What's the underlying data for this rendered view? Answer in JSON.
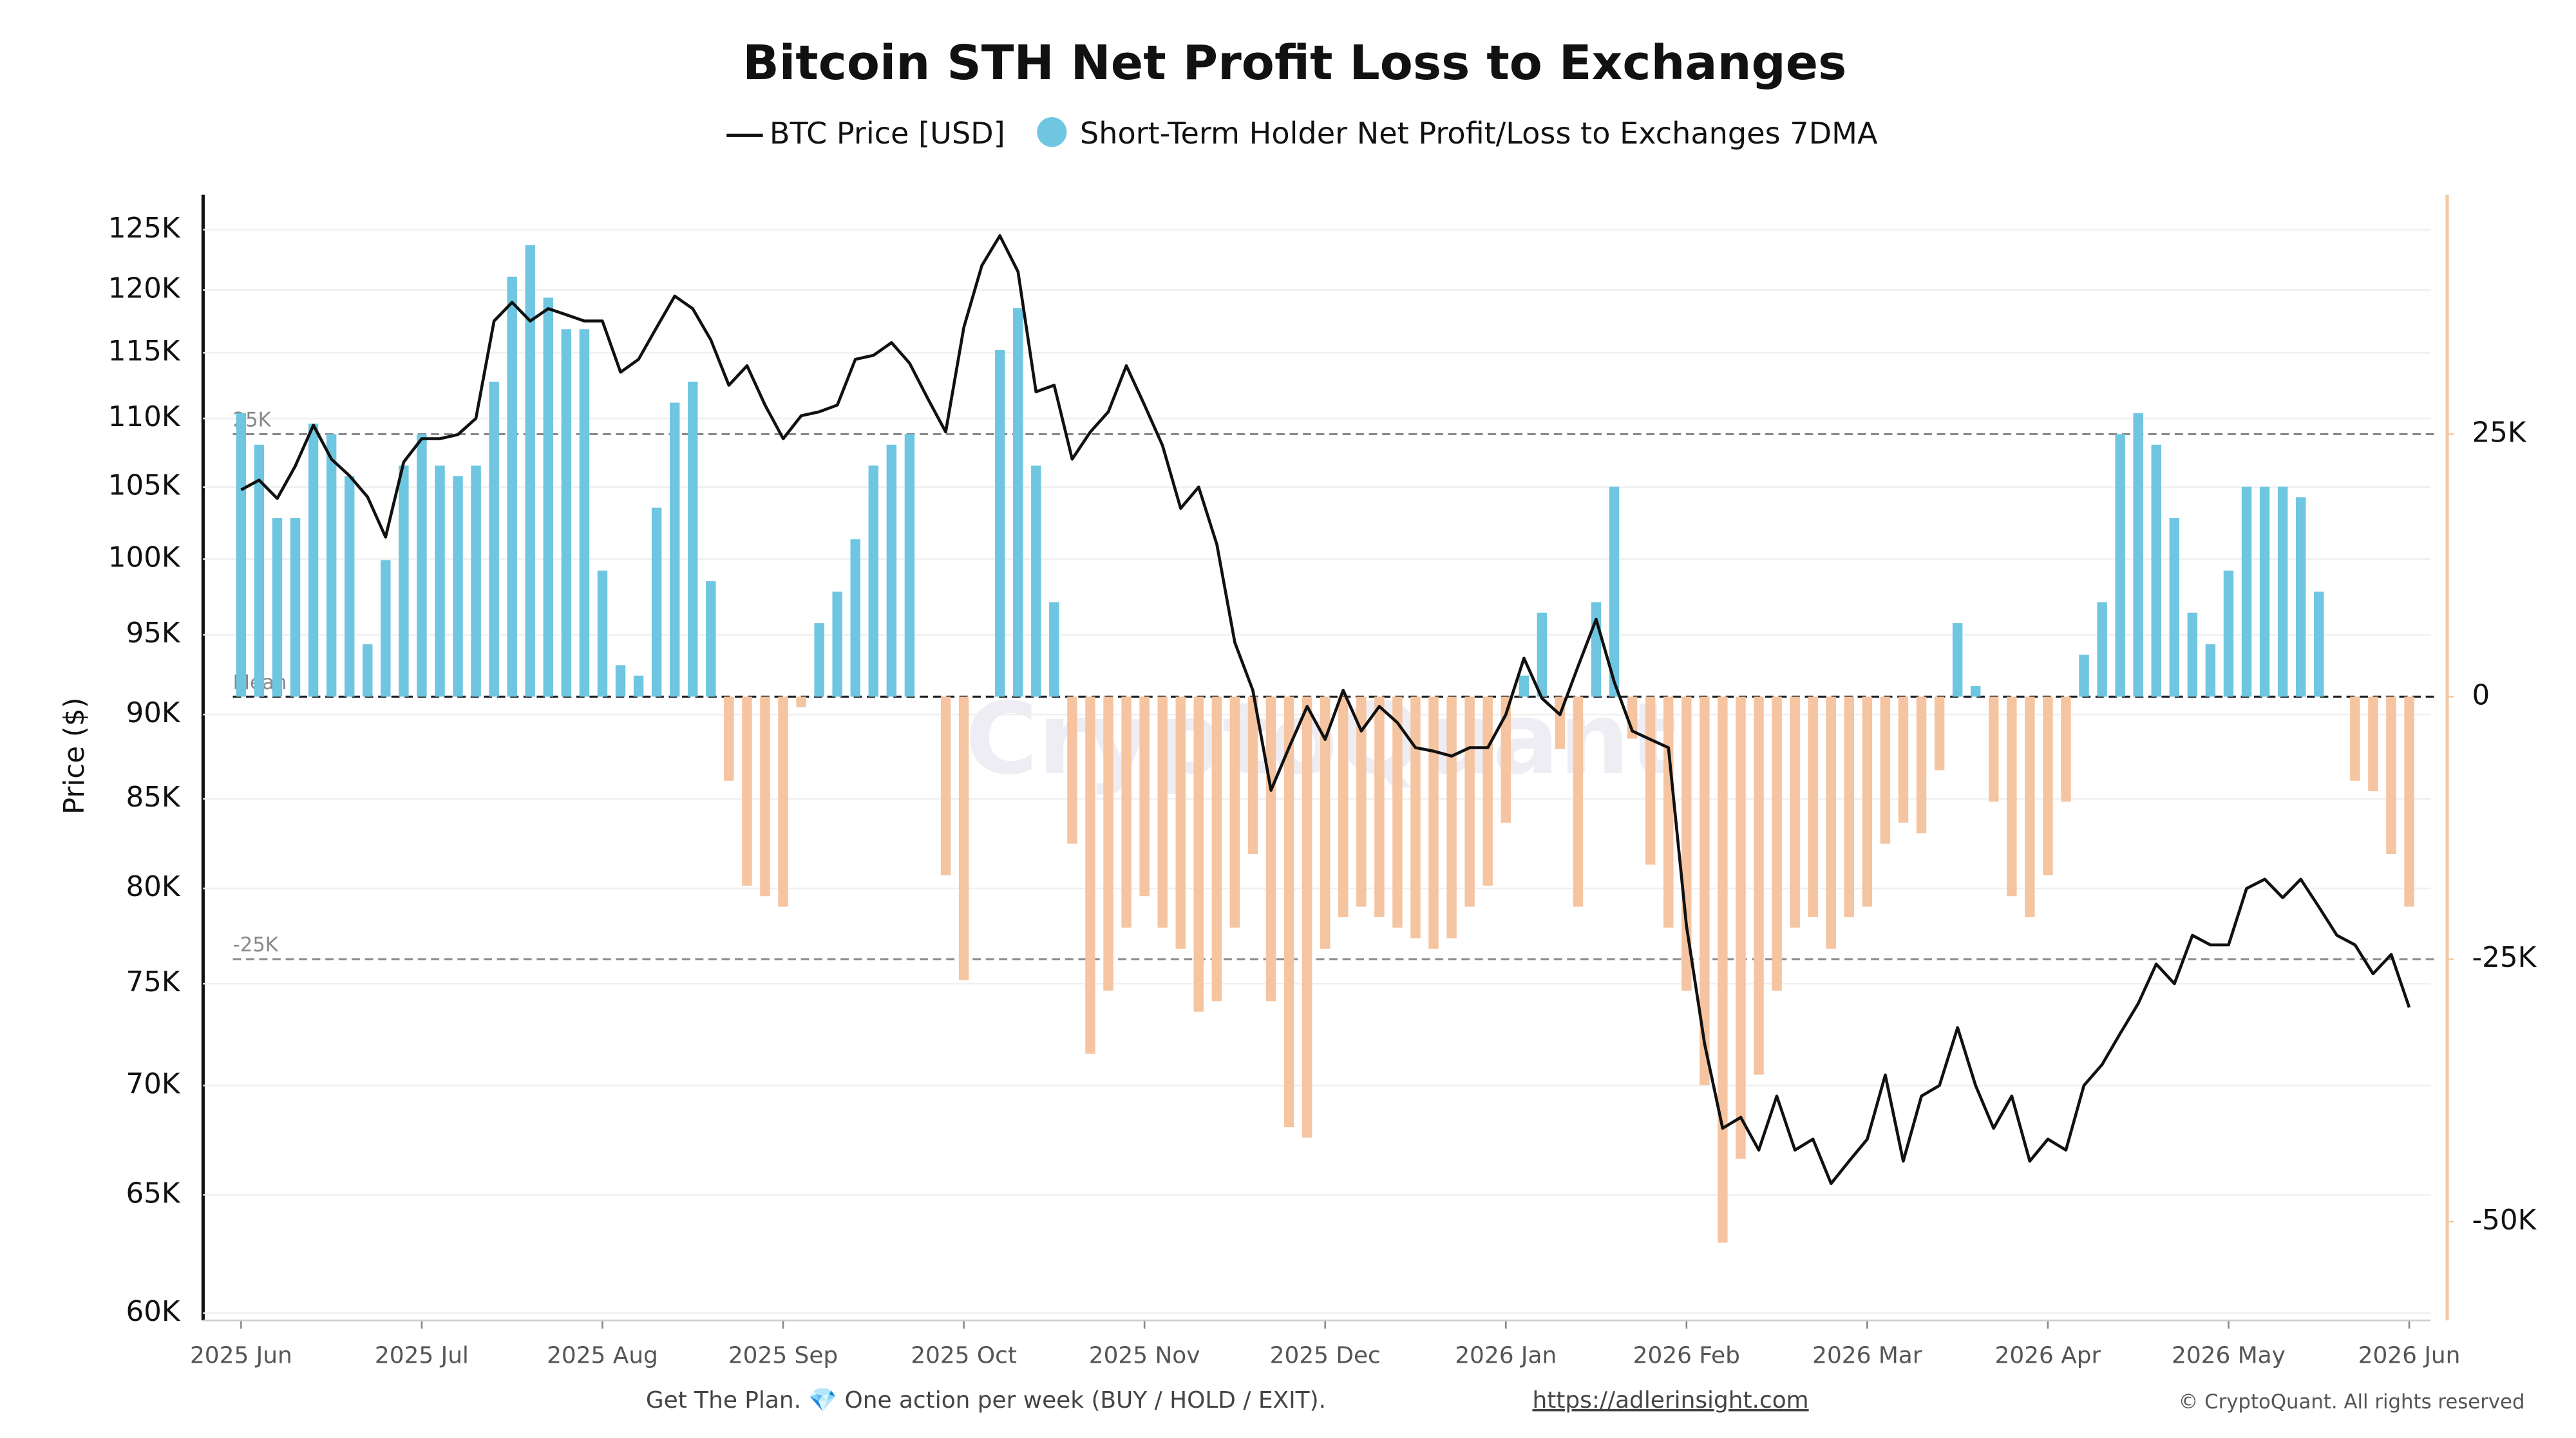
{
  "chart_data": {
    "type": "line_bar",
    "title": "Bitcoin STH Net Profit Loss to Exchanges",
    "y_label": "Price ($)",
    "watermark": "CryptoQuant",
    "categories": [
      "2025 Jun",
      null,
      null,
      null,
      null,
      null,
      null,
      null,
      null,
      null,
      "2025 Jul",
      null,
      null,
      null,
      null,
      null,
      null,
      null,
      null,
      null,
      "2025 Aug",
      null,
      null,
      null,
      null,
      null,
      null,
      null,
      null,
      null,
      "2025 Sep",
      null,
      null,
      null,
      null,
      null,
      null,
      null,
      null,
      null,
      "2025 Oct",
      null,
      null,
      null,
      null,
      null,
      null,
      null,
      null,
      null,
      "2025 Nov",
      null,
      null,
      null,
      null,
      null,
      null,
      null,
      null,
      null,
      "2025 Dec",
      null,
      null,
      null,
      null,
      null,
      null,
      null,
      null,
      null,
      "2026 Jan",
      null,
      null,
      null,
      null,
      null,
      null,
      null,
      null,
      null,
      "2026 Feb",
      null,
      null,
      null,
      null,
      null,
      null,
      null,
      null,
      null,
      "2026 Mar",
      null,
      null,
      null,
      null,
      null,
      null,
      null,
      null,
      null,
      "2026 Apr",
      null,
      null,
      null,
      null,
      null,
      null,
      null,
      null,
      null,
      "2026 May",
      null,
      null,
      null,
      null,
      null,
      null,
      null,
      null,
      null,
      "2026 Jun"
    ],
    "series": [
      {
        "name": "BTC Price [USD]",
        "type": "line",
        "color": "#111111",
        "axis": "y",
        "values": [
          104800,
          105500,
          104200,
          106500,
          109500,
          107000,
          105800,
          104300,
          101500,
          106800,
          108500,
          108500,
          108800,
          110000,
          117500,
          119000,
          117500,
          118500,
          118000,
          117500,
          117500,
          113500,
          114500,
          117000,
          119500,
          118500,
          116000,
          112500,
          114000,
          111000,
          108500,
          110200,
          110500,
          111000,
          114500,
          114800,
          115800,
          114200,
          111500,
          109000,
          117000,
          122000,
          124500,
          121500,
          112000,
          112500,
          107000,
          109000,
          110500,
          114000,
          111000,
          108000,
          103500,
          105000,
          101000,
          94500,
          91500,
          85500,
          88000,
          90500,
          88500,
          91500,
          89000,
          90500,
          89500,
          88000,
          87800,
          87500,
          88000,
          88000,
          90000,
          93500,
          91000,
          90000,
          93000,
          96000,
          92000,
          89000,
          88500,
          88000,
          78000,
          72000,
          68000,
          68500,
          67000,
          69500,
          67000,
          67500,
          65500,
          66500,
          67500,
          70500,
          66500,
          69500,
          70000,
          72800,
          70000,
          68000,
          69500,
          66500,
          67500,
          67000,
          70000,
          71000,
          72500,
          74000,
          76000,
          75000,
          77500,
          77000,
          77000,
          80000,
          80500,
          79500,
          80500,
          79000,
          77500,
          77000,
          75500,
          76500,
          73800
        ]
      },
      {
        "name": "Short-Term Holder Net Profit/Loss to Exchanges 7DMA",
        "type": "bar",
        "color": "#6ec6e0",
        "negative_color": "#f5c4a0",
        "axis": "y2",
        "values": [
          27000,
          24000,
          17000,
          17000,
          26000,
          25000,
          21000,
          5000,
          13000,
          22000,
          25000,
          22000,
          21000,
          22000,
          30000,
          40000,
          43000,
          38000,
          35000,
          35000,
          12000,
          3000,
          2000,
          18000,
          28000,
          30000,
          11000,
          -8000,
          -18000,
          -19000,
          -20000,
          -1000,
          7000,
          10000,
          15000,
          22000,
          24000,
          25000,
          0,
          -17000,
          -27000,
          0,
          33000,
          37000,
          22000,
          9000,
          -14000,
          -34000,
          -28000,
          -22000,
          -19000,
          -22000,
          -24000,
          -30000,
          -29000,
          -22000,
          -15000,
          -29000,
          -41000,
          -42000,
          -24000,
          -21000,
          -20000,
          -21000,
          -22000,
          -23000,
          -24000,
          -23000,
          -20000,
          -18000,
          -12000,
          2000,
          8000,
          -5000,
          -20000,
          9000,
          20000,
          -4000,
          -16000,
          -22000,
          -28000,
          -37000,
          -52000,
          -44000,
          -36000,
          -28000,
          -22000,
          -21000,
          -24000,
          -21000,
          -20000,
          -14000,
          -12000,
          -13000,
          -7000,
          7000,
          1000,
          -10000,
          -19000,
          -21000,
          -17000,
          -10000,
          4000,
          9000,
          25000,
          27000,
          24000,
          17000,
          8000,
          5000,
          12000,
          20000,
          20000,
          20000,
          19000,
          10000,
          0,
          -8000,
          -9000,
          -15000,
          -20000
        ]
      }
    ],
    "log_y": true,
    "ylim": [
      59700,
      128000
    ],
    "yticks": [
      {
        "value": 60000,
        "label": "60K"
      },
      {
        "value": 65000,
        "label": "65K"
      },
      {
        "value": 70000,
        "label": "70K"
      },
      {
        "value": 75000,
        "label": "75K"
      },
      {
        "value": 80000,
        "label": "80K"
      },
      {
        "value": 85000,
        "label": "85K"
      },
      {
        "value": 90000,
        "label": "90K"
      },
      {
        "value": 95000,
        "label": "95K"
      },
      {
        "value": 100000,
        "label": "100K"
      },
      {
        "value": 105000,
        "label": "105K"
      },
      {
        "value": 110000,
        "label": "110K"
      },
      {
        "value": 115000,
        "label": "115K"
      },
      {
        "value": 120000,
        "label": "120K"
      },
      {
        "value": 125000,
        "label": "125K"
      }
    ],
    "y2lim": [
      -59400,
      47800
    ],
    "y2ticks": [
      {
        "value": 25000,
        "label": "25K"
      },
      0,
      {
        "value": -25000,
        "label": "-25K"
      },
      {
        "value": -50000,
        "label": "-50K"
      }
    ],
    "reference_lines": [
      {
        "value": 25000,
        "label": "25K"
      },
      {
        "value": 0,
        "label": "Mean"
      },
      {
        "value": -25000,
        "label": "-25K"
      }
    ],
    "grid": true
  },
  "footer": {
    "text": "Get The Plan. 💎 One action per week (BUY / HOLD / EXIT).",
    "link": "https://adlerinsight.com",
    "copyright": "© CryptoQuant. All rights reserved"
  }
}
